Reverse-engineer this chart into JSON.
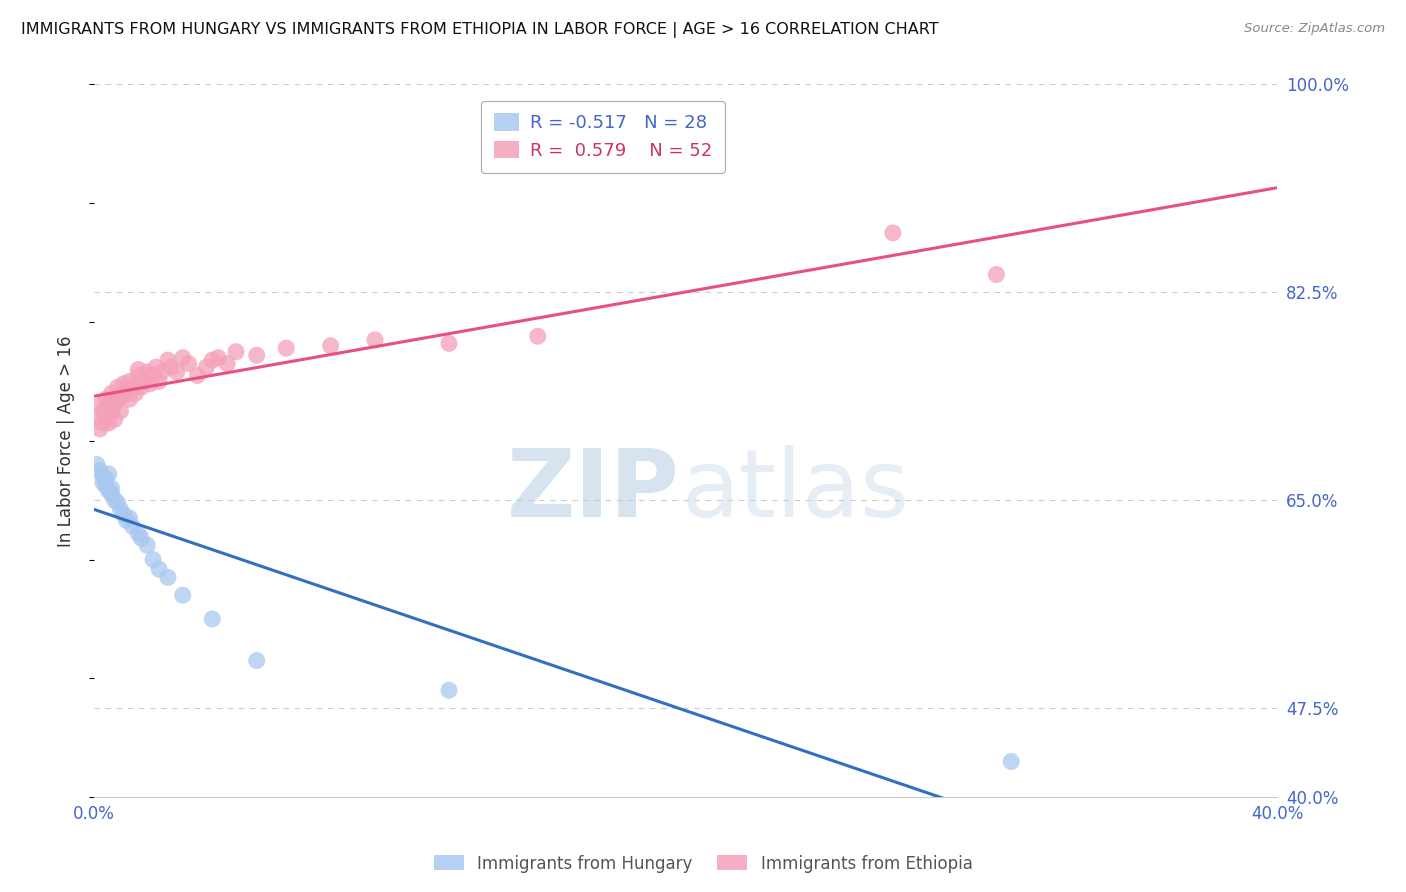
{
  "title": "IMMIGRANTS FROM HUNGARY VS IMMIGRANTS FROM ETHIOPIA IN LABOR FORCE | AGE > 16 CORRELATION CHART",
  "source": "Source: ZipAtlas.com",
  "ylabel": "In Labor Force | Age > 16",
  "xlim": [
    0.0,
    0.4
  ],
  "ylim": [
    0.4,
    1.0
  ],
  "grid_yticks": [
    1.0,
    0.825,
    0.65,
    0.475
  ],
  "ytick_show": [
    1.0,
    0.825,
    0.65,
    0.475,
    0.4
  ],
  "ytick_labels": [
    "100.0%",
    "82.5%",
    "65.0%",
    "47.5%",
    "40.0%"
  ],
  "xtick_pos": [
    0.0,
    0.1,
    0.2,
    0.3,
    0.4
  ],
  "xtick_labels": [
    "0.0%",
    "",
    "",
    "",
    "40.0%"
  ],
  "hungary_color": "#A8C8F0",
  "ethiopia_color": "#F4A0B8",
  "hungary_line_color": "#3070C0",
  "ethiopia_line_color": "#E85080",
  "R_hungary": -0.517,
  "N_hungary": 28,
  "R_ethiopia": 0.579,
  "N_ethiopia": 52,
  "watermark_zip": "ZIP",
  "watermark_atlas": "atlas",
  "legend_hungary": "Immigrants from Hungary",
  "legend_ethiopia": "Immigrants from Ethiopia",
  "hungary_x": [
    0.001,
    0.002,
    0.003,
    0.003,
    0.004,
    0.004,
    0.005,
    0.005,
    0.006,
    0.006,
    0.007,
    0.008,
    0.009,
    0.01,
    0.011,
    0.012,
    0.013,
    0.015,
    0.016,
    0.018,
    0.02,
    0.022,
    0.025,
    0.03,
    0.04,
    0.055,
    0.12,
    0.31
  ],
  "hungary_y": [
    0.68,
    0.675,
    0.67,
    0.665,
    0.662,
    0.668,
    0.658,
    0.672,
    0.655,
    0.66,
    0.65,
    0.648,
    0.642,
    0.638,
    0.633,
    0.635,
    0.628,
    0.622,
    0.618,
    0.612,
    0.6,
    0.592,
    0.585,
    0.57,
    0.55,
    0.515,
    0.49,
    0.43
  ],
  "ethiopia_x": [
    0.001,
    0.002,
    0.002,
    0.003,
    0.003,
    0.004,
    0.004,
    0.005,
    0.005,
    0.006,
    0.006,
    0.007,
    0.007,
    0.008,
    0.008,
    0.009,
    0.01,
    0.01,
    0.011,
    0.012,
    0.012,
    0.013,
    0.014,
    0.015,
    0.015,
    0.016,
    0.017,
    0.018,
    0.019,
    0.02,
    0.021,
    0.022,
    0.023,
    0.025,
    0.026,
    0.028,
    0.03,
    0.032,
    0.035,
    0.038,
    0.04,
    0.042,
    0.045,
    0.048,
    0.055,
    0.065,
    0.08,
    0.095,
    0.12,
    0.15,
    0.27,
    0.305
  ],
  "ethiopia_y": [
    0.72,
    0.73,
    0.71,
    0.715,
    0.725,
    0.72,
    0.735,
    0.715,
    0.73,
    0.725,
    0.74,
    0.718,
    0.73,
    0.735,
    0.745,
    0.725,
    0.738,
    0.748,
    0.742,
    0.735,
    0.75,
    0.745,
    0.74,
    0.755,
    0.76,
    0.745,
    0.75,
    0.758,
    0.748,
    0.755,
    0.762,
    0.75,
    0.758,
    0.768,
    0.762,
    0.758,
    0.77,
    0.765,
    0.755,
    0.762,
    0.768,
    0.77,
    0.765,
    0.775,
    0.772,
    0.778,
    0.78,
    0.785,
    0.782,
    0.788,
    0.875,
    0.84
  ]
}
